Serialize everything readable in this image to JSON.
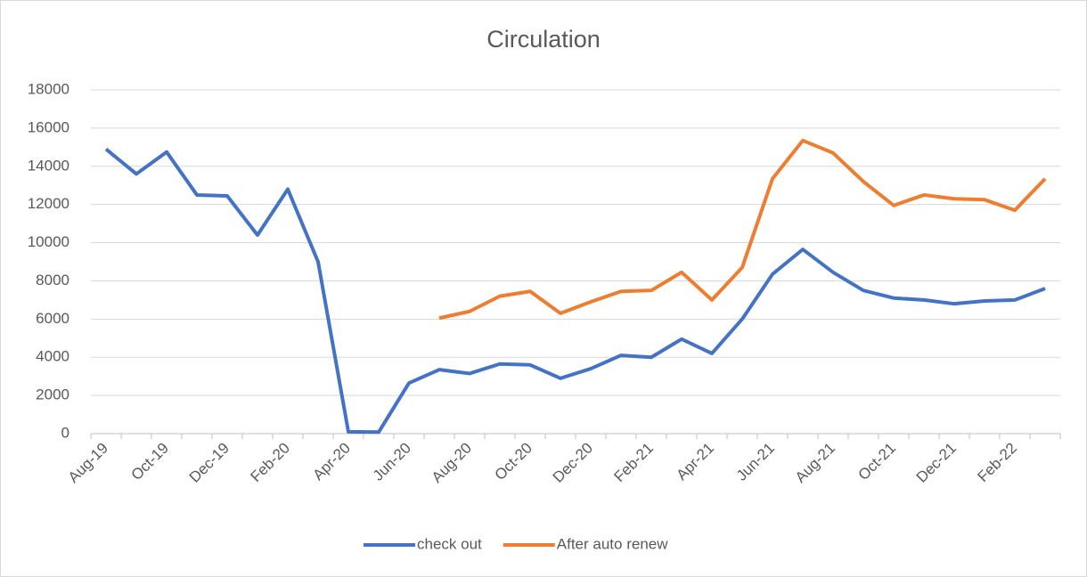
{
  "chart_data": {
    "type": "line",
    "title": "Circulation",
    "categories": [
      "Aug-19",
      null,
      "Oct-19",
      null,
      "Dec-19",
      null,
      "Feb-20",
      null,
      "Apr-20",
      null,
      "Jun-20",
      null,
      "Aug-20",
      null,
      "Oct-20",
      null,
      "Dec-20",
      null,
      "Feb-21",
      null,
      "Apr-21",
      null,
      "Jun-21",
      null,
      "Aug-21",
      null,
      "Oct-21",
      null,
      "Dec-21",
      null,
      "Feb-22",
      null
    ],
    "series": [
      {
        "name": "check out",
        "color": "#4472c4",
        "values": [
          14900,
          13600,
          14750,
          12500,
          12450,
          10400,
          12800,
          9000,
          100,
          80,
          2650,
          3350,
          3150,
          3650,
          3600,
          2900,
          3400,
          4100,
          4000,
          4950,
          4200,
          6000,
          8350,
          9650,
          8450,
          7500,
          7100,
          7000,
          6800,
          6950,
          7000,
          7600
        ]
      },
      {
        "name": "After auto renew",
        "color": "#ed7d31",
        "values": [
          null,
          null,
          null,
          null,
          null,
          null,
          null,
          null,
          null,
          null,
          null,
          6050,
          6400,
          7200,
          7450,
          6300,
          6900,
          7450,
          7500,
          8450,
          7000,
          8700,
          13350,
          15350,
          14700,
          13200,
          11950,
          12500,
          12300,
          12250,
          11700,
          13350
        ]
      }
    ],
    "ylim": [
      0,
      18000
    ],
    "yticks": [
      0,
      2000,
      4000,
      6000,
      8000,
      10000,
      12000,
      14000,
      16000,
      18000
    ],
    "grid": true,
    "legend": "bottom"
  }
}
